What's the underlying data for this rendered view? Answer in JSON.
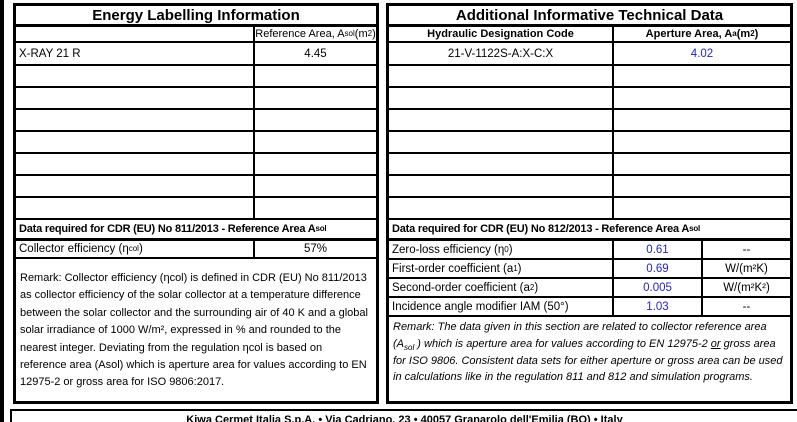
{
  "left_table": {
    "title": "Energy Labelling Information",
    "ref_area_header_html": "Reference Area, A<sub>sol</sub> (m<sup>2</sup>)",
    "product_name": "X-RAY 21 R",
    "ref_area_value": "4.45",
    "cdr_header_html": "Data required for CDR (EU) No 811/2013 - Reference Area A<sub>sol</sub>",
    "collector_efficiency_label_html": "Collector efficiency (η<sub>col</sub>)",
    "collector_efficiency_value": "57%",
    "remark": "Remark:  Collector efficiency (ηcol) is defined in CDR (EU) No 811/2013 as collector efficiency of the solar collector at a temperature difference between the solar collector and the surrounding air of 40 K and a global solar irradiance of 1000 W/m², expressed in % and rounded to the nearest integer. Deviating from the regulation ηcol is based on reference area (Asol) which is aperture area for values according to EN 12975-2 or gross area for ISO 9806:2017."
  },
  "right_table": {
    "title": "Additional Informative Technical Data",
    "hydraulic_header": "Hydraulic Designation Code",
    "aperture_header_html": "Aperture Area, A<sub>a</sub> (m<sup>2</sup>)",
    "hydraulic_code": "21-V-1122S-A:X-C:X",
    "aperture_value": "4.02",
    "cdr_header_html": "Data required for CDR (EU) No 812/2013 - Reference Area A<sub>sol</sub>",
    "rows": [
      {
        "label_html": "Zero-loss efficiency (η<sub>0</sub> )",
        "value": "0.61",
        "unit": "--"
      },
      {
        "label_html": "First-order coefficient (a<sub>1</sub>)",
        "value": "0.69",
        "unit": "W/(m²K)"
      },
      {
        "label_html": "Second-order coefficient (a<sub>2</sub>)",
        "value": "0.005",
        "unit": "W/(m²K²)"
      },
      {
        "label_html": "Incidence angle modifier IAM (50°)",
        "value": "1.03",
        "unit": "--"
      }
    ],
    "remark_html": "Remark: The data given in this section are related to collector reference area (A<sub>sol</sub> ) which is aperture area for values according to EN 12975-2 <u>or</u> gross area for ISO 9806. Consistent data sets for either aperture or gross area can be used in calculations like in the regulation 811 and 812 and simulation programs."
  },
  "footer": {
    "text": "Kiwa Cermet Italia S.p.A. • Via Cadriano, 23 • 40057 Granarolo dell'Emilia (BO) • Italy"
  },
  "colors": {
    "value_blue": "#2525C4",
    "text_black": "#000000",
    "border_black": "#000000"
  }
}
